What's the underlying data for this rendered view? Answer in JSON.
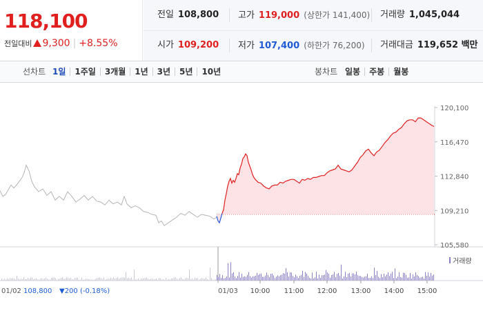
{
  "quote": {
    "price": "118,100",
    "change_label": "전일대비",
    "change_amount": "9,300",
    "change_percent": "+8.55%",
    "colors": {
      "up": "#e01f1f",
      "down": "#1f5bd6"
    }
  },
  "stats": {
    "prev_close_label": "전일",
    "prev_close": "108,800",
    "high_label": "고가",
    "high": "119,000",
    "upper_limit": "(상한가 141,400)",
    "volume_label": "거래량",
    "volume": "1,045,044",
    "open_label": "시가",
    "open": "109,200",
    "low_label": "저가",
    "low": "107,400",
    "lower_limit": "(하한가 76,200)",
    "value_label": "거래대금",
    "value": "119,652 백만"
  },
  "toolbar": {
    "line_label": "선차트",
    "periods": [
      "1일",
      "1주일",
      "3개월",
      "1년",
      "3년",
      "5년",
      "10년"
    ],
    "active_period": "1일",
    "candle_label": "봉차트",
    "candles": [
      "일봉",
      "주봉",
      "월봉"
    ]
  },
  "chart_data": {
    "type": "line",
    "y_ticks": [
      "120,100",
      "116,470",
      "112,840",
      "109,210",
      "105,580"
    ],
    "ylim": [
      105580,
      120100
    ],
    "previous_day_label": "01/02",
    "previous_close_text": "108,800",
    "previous_change_text": "▼200 (-0.18%)",
    "today_label": "01/03",
    "x_ticks": [
      "10:00",
      "11:00",
      "12:00",
      "13:00",
      "14:00",
      "15:00"
    ],
    "volume_legend": "거래량",
    "reference_price": 108800,
    "series": [
      {
        "name": "01/02",
        "points": [
          [
            0,
            111300
          ],
          [
            4,
            110700
          ],
          [
            8,
            110900
          ],
          [
            12,
            111400
          ],
          [
            16,
            111900
          ],
          [
            20,
            111600
          ],
          [
            24,
            111900
          ],
          [
            28,
            112300
          ],
          [
            32,
            112700
          ],
          [
            35,
            113200
          ],
          [
            38,
            114000
          ],
          [
            42,
            113400
          ],
          [
            46,
            112300
          ],
          [
            50,
            111700
          ],
          [
            56,
            111200
          ],
          [
            62,
            111500
          ],
          [
            68,
            110800
          ],
          [
            74,
            111200
          ],
          [
            80,
            110300
          ],
          [
            86,
            110700
          ],
          [
            92,
            110300
          ],
          [
            98,
            111200
          ],
          [
            104,
            110700
          ],
          [
            110,
            110100
          ],
          [
            116,
            110400
          ],
          [
            122,
            110800
          ],
          [
            128,
            110300
          ],
          [
            134,
            110700
          ],
          [
            140,
            110200
          ],
          [
            146,
            110100
          ],
          [
            152,
            109800
          ],
          [
            158,
            110300
          ],
          [
            164,
            109900
          ],
          [
            170,
            110100
          ],
          [
            176,
            109800
          ],
          [
            180,
            110700
          ],
          [
            184,
            109900
          ],
          [
            190,
            109500
          ],
          [
            196,
            109700
          ],
          [
            202,
            109500
          ],
          [
            208,
            109100
          ],
          [
            214,
            109000
          ],
          [
            220,
            108800
          ],
          [
            226,
            108700
          ],
          [
            230,
            107900
          ],
          [
            234,
            108100
          ],
          [
            238,
            107600
          ],
          [
            244,
            107900
          ],
          [
            250,
            108200
          ],
          [
            256,
            108500
          ],
          [
            262,
            108900
          ],
          [
            268,
            108700
          ],
          [
            274,
            109100
          ],
          [
            280,
            108800
          ],
          [
            286,
            108500
          ],
          [
            292,
            108800
          ],
          [
            298,
            108700
          ],
          [
            304,
            108600
          ],
          [
            310,
            108300
          ],
          [
            314,
            108500
          ]
        ]
      },
      {
        "name": "01/03",
        "points": [
          [
            314,
            108600
          ],
          [
            316,
            108100
          ],
          [
            318,
            107900
          ],
          [
            320,
            108400
          ],
          [
            322,
            108900
          ],
          [
            324,
            109300
          ],
          [
            326,
            110300
          ],
          [
            328,
            111000
          ],
          [
            330,
            111800
          ],
          [
            332,
            112300
          ],
          [
            334,
            112600
          ],
          [
            336,
            112100
          ],
          [
            338,
            112400
          ],
          [
            340,
            112200
          ],
          [
            342,
            112600
          ],
          [
            344,
            113100
          ],
          [
            346,
            113000
          ],
          [
            348,
            113700
          ],
          [
            350,
            114100
          ],
          [
            352,
            114700
          ],
          [
            354,
            114900
          ],
          [
            356,
            115200
          ],
          [
            358,
            115000
          ],
          [
            360,
            114300
          ],
          [
            362,
            113900
          ],
          [
            364,
            113500
          ],
          [
            366,
            113000
          ],
          [
            368,
            112700
          ],
          [
            370,
            112500
          ],
          [
            374,
            112200
          ],
          [
            378,
            112100
          ],
          [
            382,
            111800
          ],
          [
            386,
            111600
          ],
          [
            390,
            111500
          ],
          [
            394,
            111800
          ],
          [
            398,
            111900
          ],
          [
            402,
            111900
          ],
          [
            406,
            112200
          ],
          [
            410,
            112100
          ],
          [
            414,
            112300
          ],
          [
            418,
            112400
          ],
          [
            422,
            112500
          ],
          [
            426,
            112500
          ],
          [
            430,
            112300
          ],
          [
            434,
            112100
          ],
          [
            438,
            112500
          ],
          [
            442,
            112400
          ],
          [
            446,
            112600
          ],
          [
            450,
            112500
          ],
          [
            454,
            112700
          ],
          [
            458,
            112700
          ],
          [
            462,
            112800
          ],
          [
            466,
            112900
          ],
          [
            470,
            112900
          ],
          [
            474,
            113200
          ],
          [
            478,
            113400
          ],
          [
            482,
            113500
          ],
          [
            486,
            113600
          ],
          [
            490,
            114000
          ],
          [
            494,
            113600
          ],
          [
            498,
            113500
          ],
          [
            502,
            113400
          ],
          [
            506,
            113300
          ],
          [
            510,
            113500
          ],
          [
            514,
            113900
          ],
          [
            518,
            114300
          ],
          [
            522,
            114800
          ],
          [
            526,
            115100
          ],
          [
            530,
            115500
          ],
          [
            534,
            115700
          ],
          [
            538,
            115300
          ],
          [
            542,
            115000
          ],
          [
            546,
            115400
          ],
          [
            550,
            115600
          ],
          [
            554,
            116000
          ],
          [
            558,
            116400
          ],
          [
            562,
            116700
          ],
          [
            566,
            117100
          ],
          [
            570,
            117400
          ],
          [
            574,
            117500
          ],
          [
            578,
            117800
          ],
          [
            582,
            118000
          ],
          [
            586,
            118400
          ],
          [
            590,
            118700
          ],
          [
            594,
            118800
          ],
          [
            598,
            118800
          ],
          [
            602,
            118600
          ],
          [
            606,
            119000
          ],
          [
            610,
            119000
          ],
          [
            614,
            118800
          ],
          [
            618,
            118600
          ],
          [
            622,
            118400
          ],
          [
            626,
            118200
          ],
          [
            629,
            118100
          ]
        ]
      }
    ]
  }
}
